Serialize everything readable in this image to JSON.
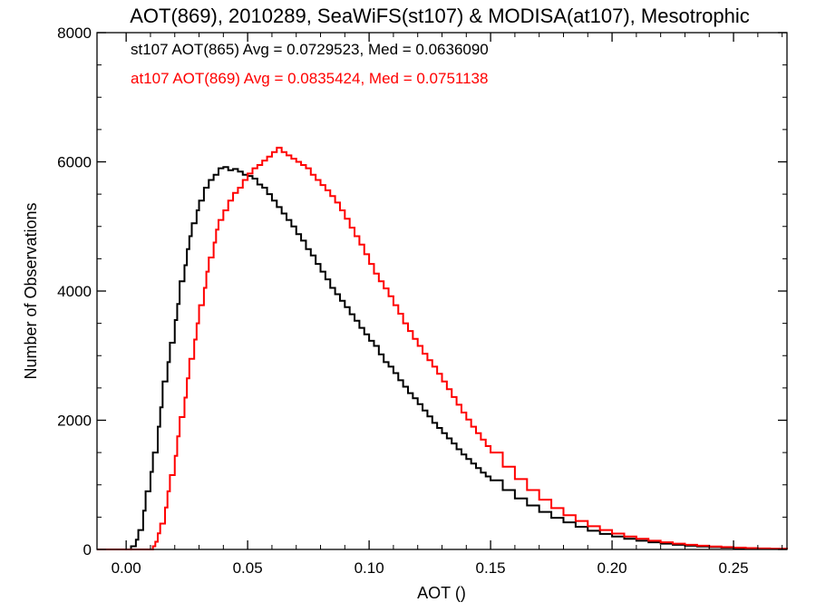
{
  "chart_data": {
    "type": "line",
    "step": true,
    "title": "AOT(869), 2010289, SeaWiFS(st107) & MODISA(at107), Mesotrophic",
    "xlabel": "AOT ()",
    "ylabel": "Number of Observations",
    "xlim": [
      -0.012,
      0.272
    ],
    "ylim": [
      0,
      8000
    ],
    "xticks": [
      0.0,
      0.05,
      0.1,
      0.15,
      0.2,
      0.25
    ],
    "xtick_labels": [
      "0.00",
      "0.05",
      "0.10",
      "0.15",
      "0.20",
      "0.25"
    ],
    "yticks": [
      0,
      2000,
      4000,
      6000,
      8000
    ],
    "ytick_labels": [
      "0",
      "2000",
      "4000",
      "6000",
      "8000"
    ],
    "grid": false,
    "legend_position": "top-left",
    "series": [
      {
        "name": "st107 AOT(865) Avg = 0.0729523, Med = 0.0636090",
        "color": "#000000",
        "points": [
          [
            -0.012,
            0
          ],
          [
            0.001,
            0
          ],
          [
            0.002,
            50
          ],
          [
            0.004,
            150
          ],
          [
            0.005,
            300
          ],
          [
            0.007,
            600
          ],
          [
            0.008,
            900
          ],
          [
            0.01,
            1200
          ],
          [
            0.011,
            1500
          ],
          [
            0.013,
            1900
          ],
          [
            0.014,
            2200
          ],
          [
            0.015,
            2600
          ],
          [
            0.017,
            2900
          ],
          [
            0.018,
            3200
          ],
          [
            0.02,
            3550
          ],
          [
            0.021,
            3800
          ],
          [
            0.022,
            4150
          ],
          [
            0.024,
            4400
          ],
          [
            0.025,
            4650
          ],
          [
            0.026,
            4850
          ],
          [
            0.027,
            5050
          ],
          [
            0.029,
            5250
          ],
          [
            0.03,
            5400
          ],
          [
            0.032,
            5600
          ],
          [
            0.034,
            5720
          ],
          [
            0.036,
            5800
          ],
          [
            0.038,
            5900
          ],
          [
            0.04,
            5920
          ],
          [
            0.042,
            5870
          ],
          [
            0.044,
            5890
          ],
          [
            0.046,
            5850
          ],
          [
            0.048,
            5800
          ],
          [
            0.05,
            5780
          ],
          [
            0.052,
            5740
          ],
          [
            0.054,
            5650
          ],
          [
            0.056,
            5600
          ],
          [
            0.058,
            5500
          ],
          [
            0.06,
            5400
          ],
          [
            0.062,
            5300
          ],
          [
            0.064,
            5200
          ],
          [
            0.066,
            5100
          ],
          [
            0.068,
            5000
          ],
          [
            0.07,
            4880
          ],
          [
            0.072,
            4780
          ],
          [
            0.074,
            4650
          ],
          [
            0.076,
            4550
          ],
          [
            0.078,
            4420
          ],
          [
            0.08,
            4300
          ],
          [
            0.082,
            4180
          ],
          [
            0.084,
            4050
          ],
          [
            0.086,
            3950
          ],
          [
            0.088,
            3850
          ],
          [
            0.09,
            3750
          ],
          [
            0.092,
            3640
          ],
          [
            0.094,
            3540
          ],
          [
            0.096,
            3430
          ],
          [
            0.098,
            3330
          ],
          [
            0.1,
            3230
          ],
          [
            0.102,
            3150
          ],
          [
            0.104,
            3020
          ],
          [
            0.106,
            2900
          ],
          [
            0.108,
            2830
          ],
          [
            0.11,
            2730
          ],
          [
            0.112,
            2620
          ],
          [
            0.114,
            2520
          ],
          [
            0.116,
            2420
          ],
          [
            0.118,
            2340
          ],
          [
            0.12,
            2250
          ],
          [
            0.122,
            2150
          ],
          [
            0.124,
            2060
          ],
          [
            0.126,
            1960
          ],
          [
            0.128,
            1880
          ],
          [
            0.13,
            1800
          ],
          [
            0.132,
            1720
          ],
          [
            0.134,
            1640
          ],
          [
            0.136,
            1550
          ],
          [
            0.138,
            1470
          ],
          [
            0.14,
            1400
          ],
          [
            0.142,
            1330
          ],
          [
            0.144,
            1260
          ],
          [
            0.146,
            1190
          ],
          [
            0.148,
            1130
          ],
          [
            0.15,
            1070
          ],
          [
            0.155,
            920
          ],
          [
            0.16,
            790
          ],
          [
            0.165,
            680
          ],
          [
            0.17,
            580
          ],
          [
            0.175,
            490
          ],
          [
            0.18,
            420
          ],
          [
            0.185,
            350
          ],
          [
            0.19,
            290
          ],
          [
            0.195,
            240
          ],
          [
            0.2,
            200
          ],
          [
            0.205,
            165
          ],
          [
            0.21,
            135
          ],
          [
            0.215,
            110
          ],
          [
            0.22,
            90
          ],
          [
            0.225,
            72
          ],
          [
            0.23,
            58
          ],
          [
            0.235,
            45
          ],
          [
            0.24,
            36
          ],
          [
            0.245,
            28
          ],
          [
            0.25,
            21
          ],
          [
            0.255,
            16
          ],
          [
            0.26,
            12
          ],
          [
            0.265,
            8
          ],
          [
            0.272,
            5
          ]
        ]
      },
      {
        "name": "at107 AOT(869) Avg = 0.0835424, Med = 0.0751138",
        "color": "#ff0000",
        "points": [
          [
            -0.012,
            0
          ],
          [
            0.01,
            0
          ],
          [
            0.011,
            50
          ],
          [
            0.012,
            120
          ],
          [
            0.013,
            250
          ],
          [
            0.014,
            400
          ],
          [
            0.016,
            650
          ],
          [
            0.017,
            900
          ],
          [
            0.018,
            1150
          ],
          [
            0.02,
            1450
          ],
          [
            0.021,
            1750
          ],
          [
            0.022,
            2050
          ],
          [
            0.024,
            2350
          ],
          [
            0.025,
            2650
          ],
          [
            0.026,
            2950
          ],
          [
            0.028,
            3250
          ],
          [
            0.029,
            3500
          ],
          [
            0.03,
            3780
          ],
          [
            0.032,
            4050
          ],
          [
            0.033,
            4300
          ],
          [
            0.034,
            4520
          ],
          [
            0.036,
            4750
          ],
          [
            0.037,
            4950
          ],
          [
            0.038,
            5100
          ],
          [
            0.04,
            5250
          ],
          [
            0.042,
            5400
          ],
          [
            0.044,
            5520
          ],
          [
            0.046,
            5600
          ],
          [
            0.048,
            5720
          ],
          [
            0.05,
            5820
          ],
          [
            0.052,
            5900
          ],
          [
            0.054,
            5950
          ],
          [
            0.056,
            6020
          ],
          [
            0.058,
            6080
          ],
          [
            0.06,
            6150
          ],
          [
            0.062,
            6220
          ],
          [
            0.064,
            6150
          ],
          [
            0.066,
            6100
          ],
          [
            0.068,
            6050
          ],
          [
            0.07,
            6000
          ],
          [
            0.072,
            5950
          ],
          [
            0.074,
            5900
          ],
          [
            0.076,
            5800
          ],
          [
            0.078,
            5720
          ],
          [
            0.08,
            5640
          ],
          [
            0.082,
            5560
          ],
          [
            0.084,
            5470
          ],
          [
            0.086,
            5370
          ],
          [
            0.088,
            5250
          ],
          [
            0.09,
            5120
          ],
          [
            0.092,
            4980
          ],
          [
            0.094,
            4850
          ],
          [
            0.096,
            4720
          ],
          [
            0.098,
            4570
          ],
          [
            0.1,
            4420
          ],
          [
            0.102,
            4270
          ],
          [
            0.104,
            4150
          ],
          [
            0.106,
            4040
          ],
          [
            0.108,
            3920
          ],
          [
            0.11,
            3780
          ],
          [
            0.112,
            3650
          ],
          [
            0.114,
            3500
          ],
          [
            0.116,
            3380
          ],
          [
            0.118,
            3260
          ],
          [
            0.12,
            3150
          ],
          [
            0.122,
            3030
          ],
          [
            0.124,
            2930
          ],
          [
            0.126,
            2830
          ],
          [
            0.128,
            2720
          ],
          [
            0.13,
            2600
          ],
          [
            0.132,
            2480
          ],
          [
            0.134,
            2360
          ],
          [
            0.136,
            2240
          ],
          [
            0.138,
            2120
          ],
          [
            0.14,
            2010
          ],
          [
            0.142,
            1900
          ],
          [
            0.144,
            1800
          ],
          [
            0.146,
            1700
          ],
          [
            0.148,
            1600
          ],
          [
            0.15,
            1500
          ],
          [
            0.155,
            1280
          ],
          [
            0.16,
            1090
          ],
          [
            0.165,
            920
          ],
          [
            0.17,
            770
          ],
          [
            0.175,
            640
          ],
          [
            0.18,
            530
          ],
          [
            0.185,
            440
          ],
          [
            0.19,
            360
          ],
          [
            0.195,
            300
          ],
          [
            0.2,
            245
          ],
          [
            0.205,
            200
          ],
          [
            0.21,
            165
          ],
          [
            0.215,
            135
          ],
          [
            0.22,
            110
          ],
          [
            0.225,
            90
          ],
          [
            0.23,
            72
          ],
          [
            0.235,
            58
          ],
          [
            0.24,
            46
          ],
          [
            0.245,
            36
          ],
          [
            0.25,
            28
          ],
          [
            0.255,
            21
          ],
          [
            0.26,
            15
          ],
          [
            0.265,
            10
          ],
          [
            0.272,
            6
          ]
        ]
      }
    ]
  }
}
